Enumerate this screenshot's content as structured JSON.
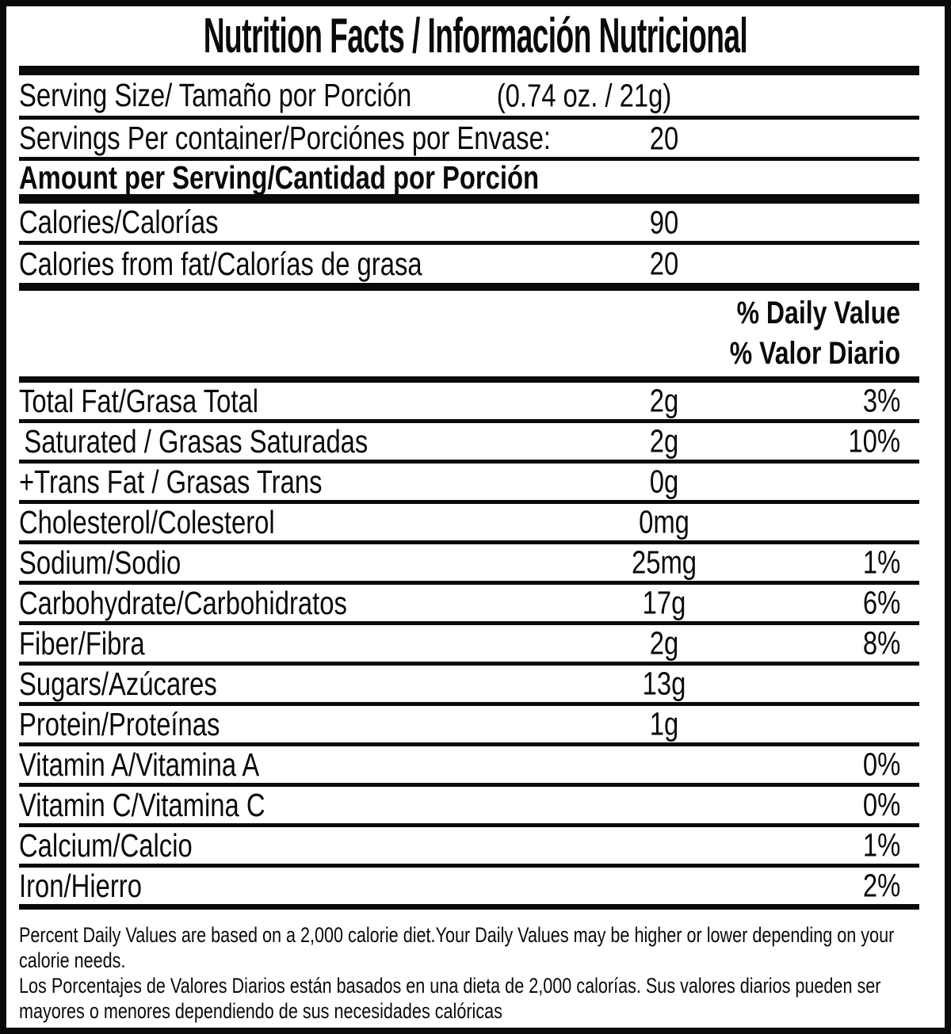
{
  "colors": {
    "ink": "#0a0a0a",
    "background": "#ffffff"
  },
  "title": "Nutrition Facts / Información Nutricional",
  "serving_size": {
    "label": "Serving Size/ Tamaño por Porción",
    "value": "(0.74 oz. / 21g)"
  },
  "servings_per_container": {
    "label": "Servings Per container/Porciónes por Envase:",
    "value": "20"
  },
  "amount_header": "Amount per Serving/Cantidad por Porción",
  "calories": {
    "label": "Calories/Calorías",
    "value": "90"
  },
  "calories_from_fat": {
    "label": "Calories from fat/Calorías de grasa",
    "value": "20"
  },
  "daily_value_header": {
    "line1": "% Daily Value",
    "line2": "% Valor Diario"
  },
  "nutrients": [
    {
      "label": "Total Fat/Grasa Total",
      "value": "2g",
      "dv": "3%"
    },
    {
      "label": "Saturated / Grasas Saturadas",
      "value": "2g",
      "dv": "10%"
    },
    {
      "label": "+Trans Fat / Grasas Trans",
      "value": "0g",
      "dv": ""
    },
    {
      "label": "Cholesterol/Colesterol",
      "value": "0mg",
      "dv": ""
    },
    {
      "label": "Sodium/Sodio",
      "value": "25mg",
      "dv": "1%"
    },
    {
      "label": "Carbohydrate/Carbohidratos",
      "value": "17g",
      "dv": "6%"
    },
    {
      "label": "Fiber/Fibra",
      "value": "2g",
      "dv": "8%"
    },
    {
      "label": "Sugars/Azúcares",
      "value": "13g",
      "dv": ""
    },
    {
      "label": "Protein/Proteínas",
      "value": "1g",
      "dv": ""
    },
    {
      "label": "Vitamin A/Vitamina A",
      "value": "",
      "dv": "0%"
    },
    {
      "label": "Vitamin C/Vitamina C",
      "value": "",
      "dv": "0%"
    },
    {
      "label": "Calcium/Calcio",
      "value": "",
      "dv": "1%"
    },
    {
      "label": "Iron/Hierro",
      "value": "",
      "dv": "2%"
    }
  ],
  "footnote": {
    "english": [
      "Percent Daily Values are based on a 2,000 calorie diet.Your Daily Values may be higher or lower depending on your",
      "calorie needs."
    ],
    "spanish": [
      "Los Porcentajes de Valores Diarios están basados en una dieta de 2,000 calorías. Sus valores diarios pueden ser",
      "mayores o menores dependiendo de sus necesidades calóricas"
    ]
  }
}
